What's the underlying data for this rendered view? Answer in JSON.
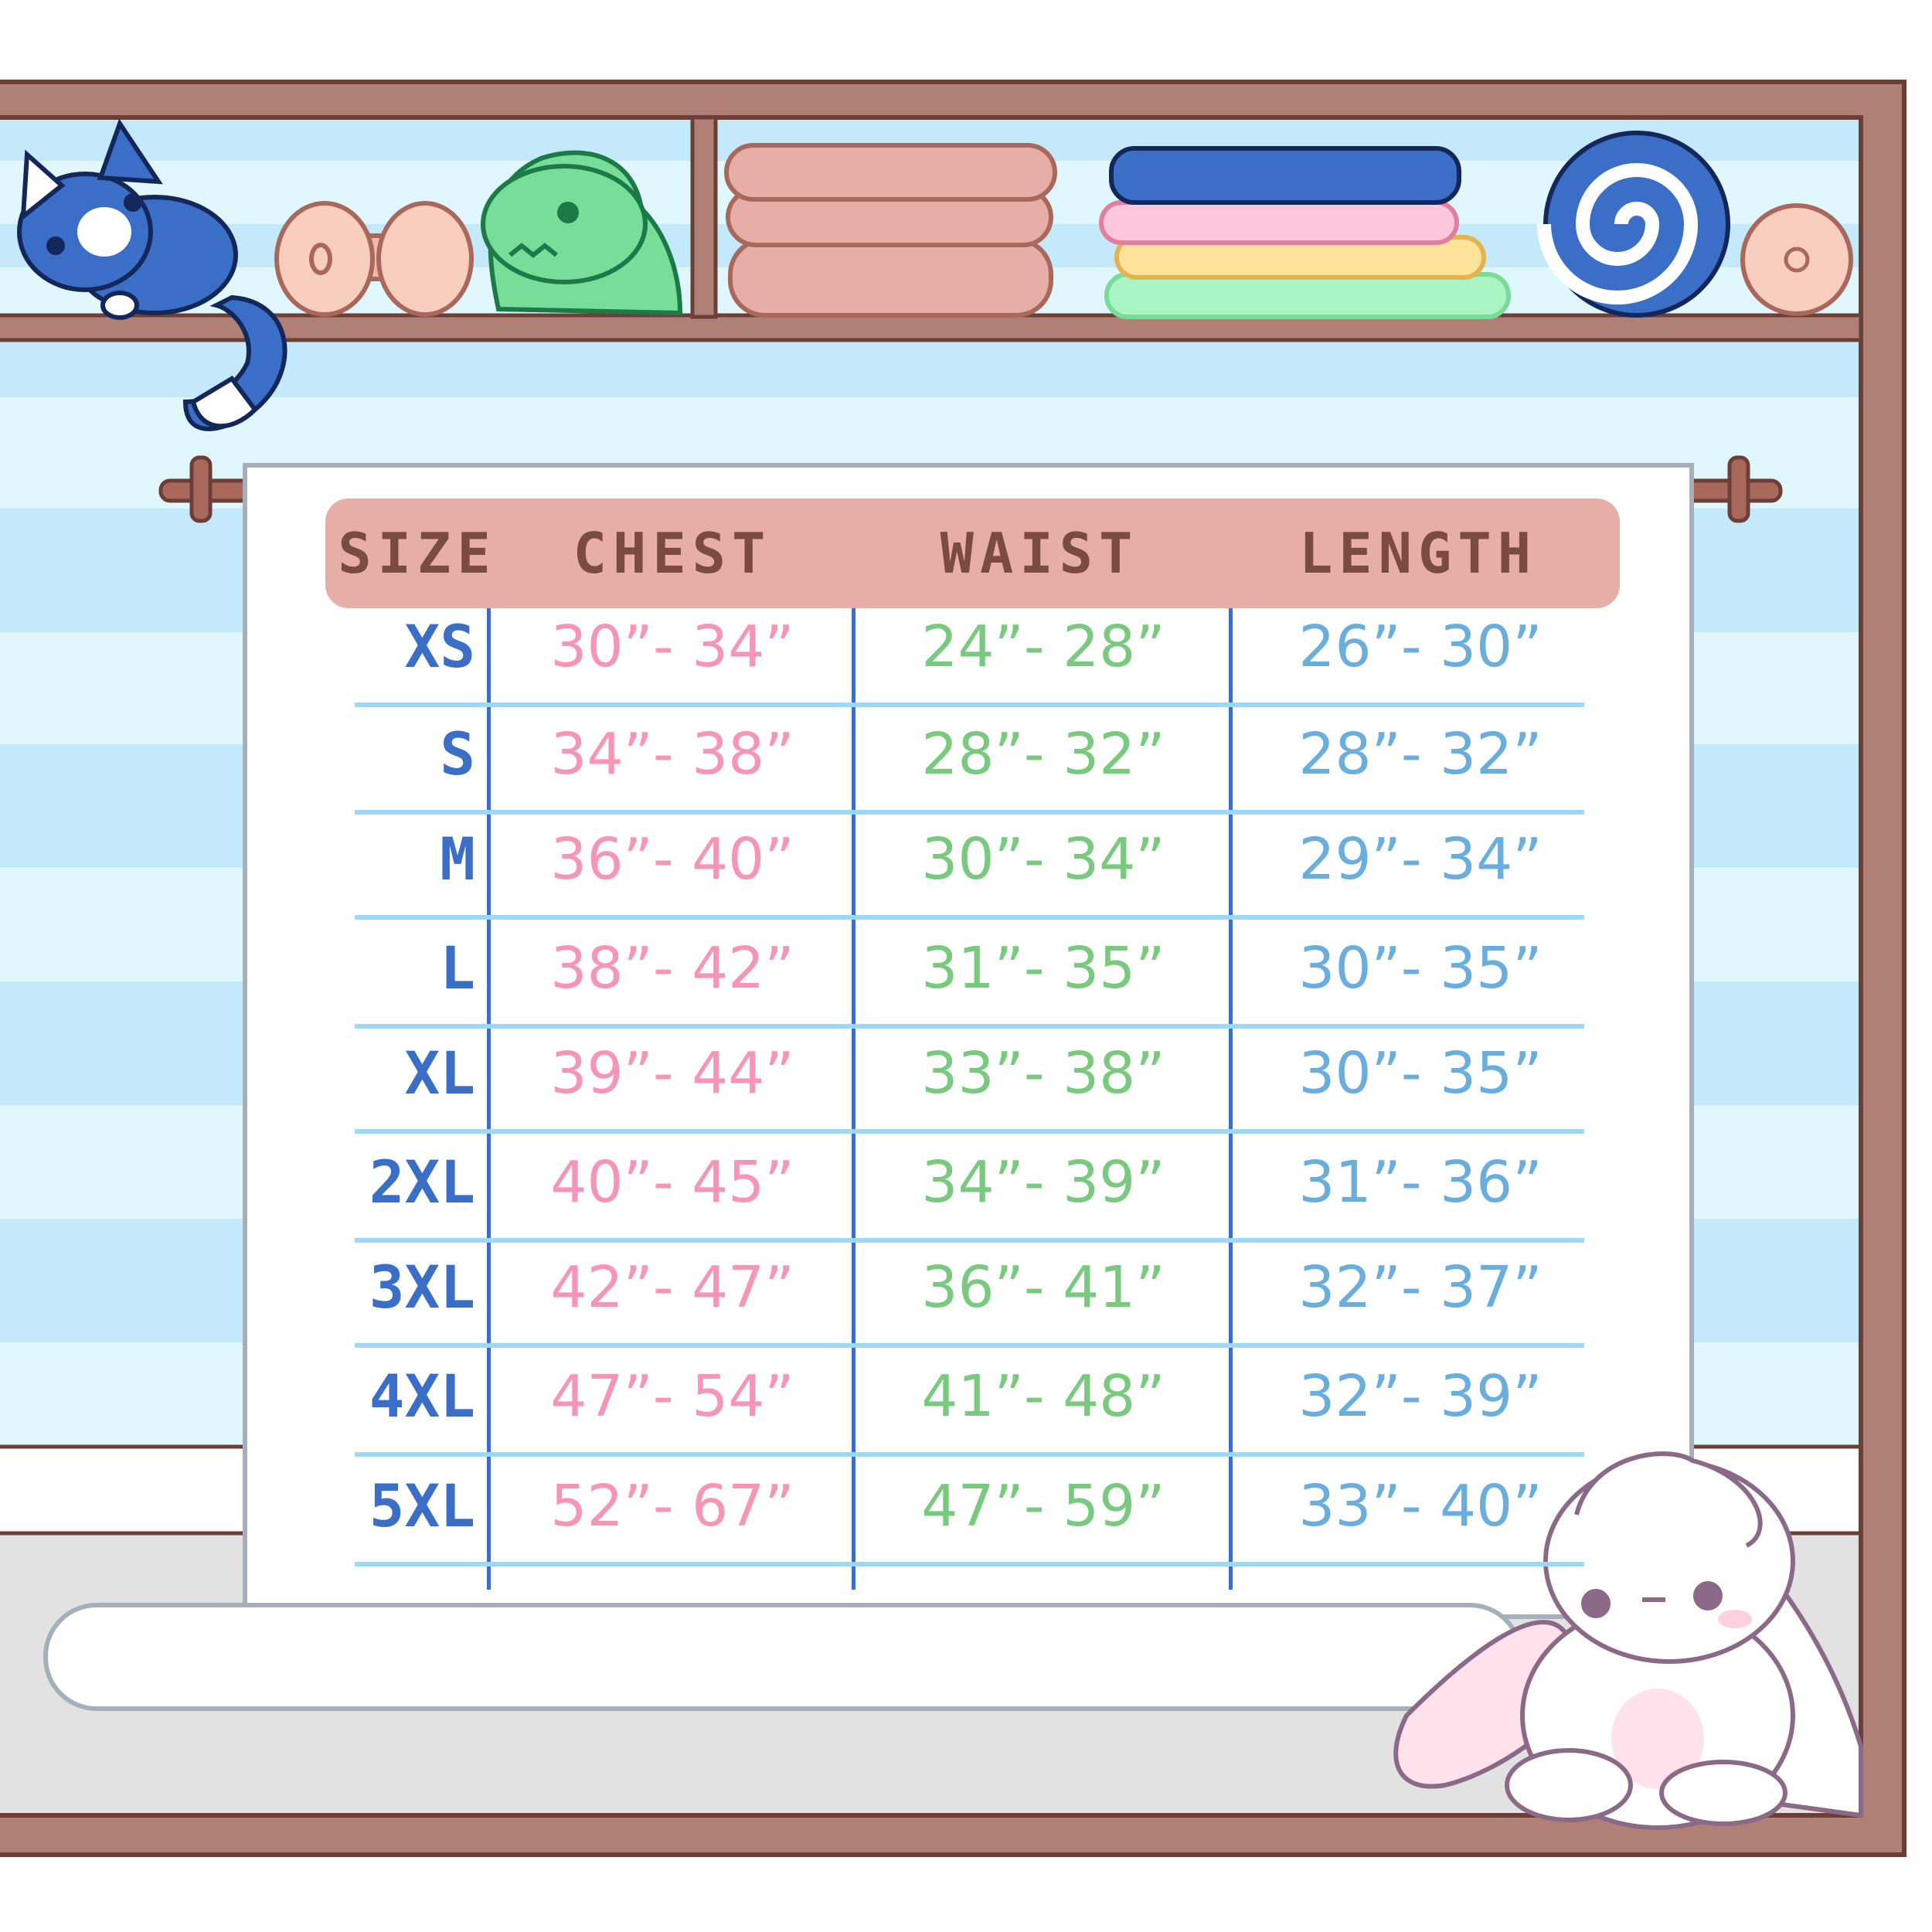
{
  "headers": {
    "size": "SIZE",
    "chest": "CHEST",
    "waist": "WAIST",
    "length": "LENGTH"
  },
  "rows": [
    {
      "size": "XS",
      "chest": "30”- 34”",
      "waist": "24”- 28”",
      "length": "26”- 30”"
    },
    {
      "size": "S",
      "chest": "34”- 38”",
      "waist": "28”- 32”",
      "length": "28”- 32”"
    },
    {
      "size": "M",
      "chest": "36”- 40”",
      "waist": "30”- 34”",
      "length": "29”- 34”"
    },
    {
      "size": "L",
      "chest": "38”- 42”",
      "waist": "31”- 35”",
      "length": "30”- 35”"
    },
    {
      "size": "XL",
      "chest": "39”- 44”",
      "waist": "33”- 38”",
      "length": "30”- 35”"
    },
    {
      "size": "2XL",
      "chest": "40”- 45”",
      "waist": "34”- 39”",
      "length": "31”- 36”"
    },
    {
      "size": "3XL",
      "chest": "42”- 47”",
      "waist": "36”- 41”",
      "length": "32”- 37”"
    },
    {
      "size": "4XL",
      "chest": "47”- 54”",
      "waist": "41”- 48”",
      "length": "32”- 39”"
    },
    {
      "size": "5XL",
      "chest": "52”- 67”",
      "waist": "47”- 59”",
      "length": "33”- 40”"
    }
  ],
  "colors": {
    "size": "#3a6ec7",
    "chest": "#f795b6",
    "waist": "#79c97f",
    "length": "#6aaedd",
    "header_bg": "#e6aea6",
    "header_text": "#7b4a40",
    "frame": "#b07f76"
  },
  "decorations": [
    "cat-plush",
    "dumbbell",
    "dinosaur-plush",
    "folded-towels-pink",
    "folded-towels-colorful",
    "blue-rolled-towel",
    "bunny-plush"
  ]
}
